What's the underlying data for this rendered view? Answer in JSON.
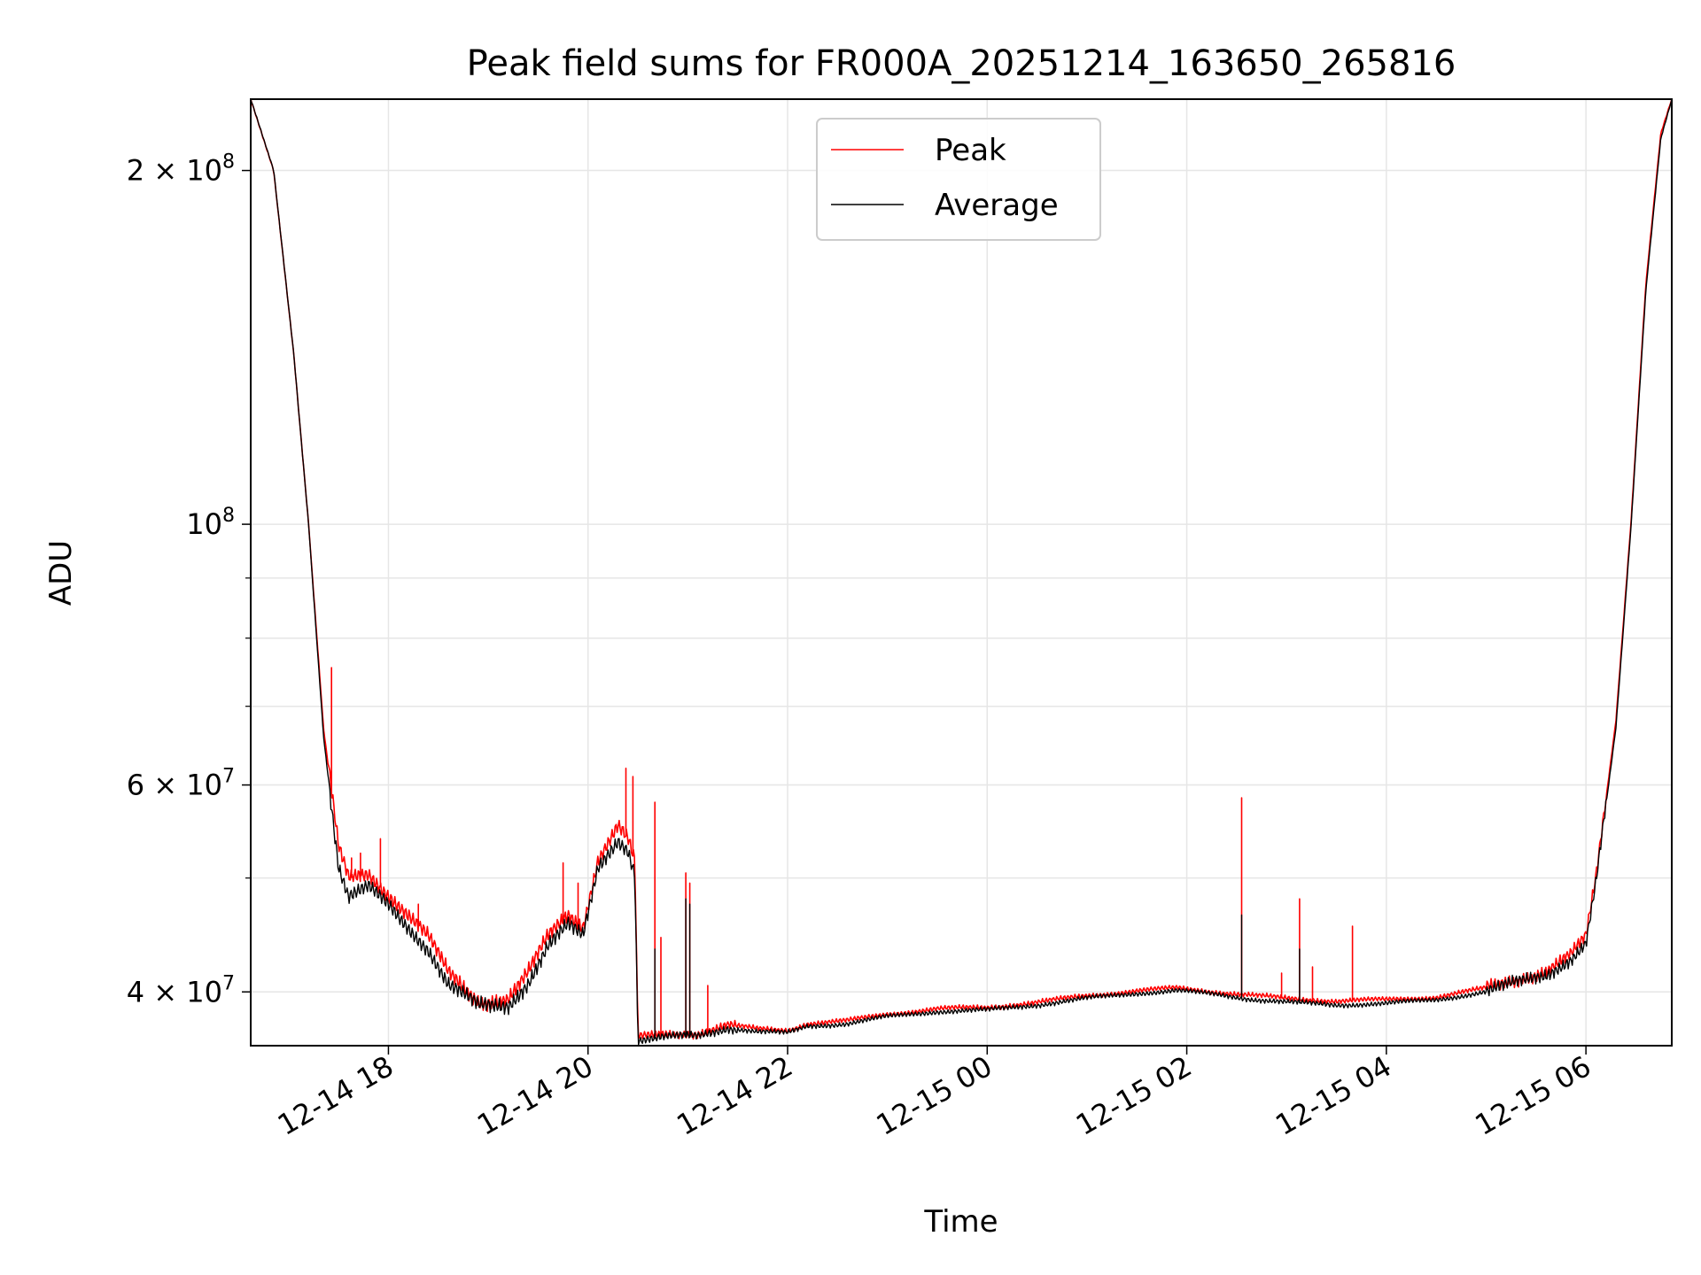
{
  "chart_data": {
    "type": "line",
    "title": "Peak field sums for FR000A_20251214_163650_265816",
    "xlabel": "Time",
    "ylabel": "ADU",
    "yscale": "log",
    "ylim": [
      36000000,
      230000000
    ],
    "xlim_hours": [
      16.62,
      30.86
    ],
    "grid": true,
    "legend_position": "upper-center",
    "x_ticks": [
      {
        "hour": 18,
        "label": "12-14 18"
      },
      {
        "hour": 20,
        "label": "12-14 20"
      },
      {
        "hour": 22,
        "label": "12-14 22"
      },
      {
        "hour": 24,
        "label": "12-15 00"
      },
      {
        "hour": 26,
        "label": "12-15 02"
      },
      {
        "hour": 28,
        "label": "12-15 04"
      },
      {
        "hour": 30,
        "label": "12-15 06"
      }
    ],
    "y_major_ticks": [
      {
        "value": 40000000,
        "mant": "4",
        "exp": "7",
        "times": true
      },
      {
        "value": 60000000,
        "mant": "6",
        "exp": "7",
        "times": true
      },
      {
        "value": 100000000,
        "mant": "10",
        "exp": "8",
        "times": false
      },
      {
        "value": 200000000,
        "mant": "2",
        "exp": "8",
        "times": true
      }
    ],
    "y_minor_ticks": [
      50000000,
      70000000,
      80000000,
      90000000
    ],
    "series": [
      {
        "name": "Peak",
        "color": "#ff0000",
        "points": [
          [
            16.62,
            230000000
          ],
          [
            16.85,
            200000000
          ],
          [
            17.05,
            140000000
          ],
          [
            17.2,
            100000000
          ],
          [
            17.35,
            67000000
          ],
          [
            17.5,
            53000000
          ],
          [
            17.6,
            50000000
          ],
          [
            17.8,
            50500000
          ],
          [
            18.0,
            48500000
          ],
          [
            18.2,
            46500000
          ],
          [
            18.4,
            44500000
          ],
          [
            18.6,
            41500000
          ],
          [
            18.9,
            39300000
          ],
          [
            19.2,
            39500000
          ],
          [
            19.4,
            41500000
          ],
          [
            19.6,
            44500000
          ],
          [
            19.8,
            46500000
          ],
          [
            19.95,
            45500000
          ],
          [
            20.1,
            52000000
          ],
          [
            20.3,
            55500000
          ],
          [
            20.4,
            54000000
          ],
          [
            20.47,
            51500000
          ],
          [
            20.5,
            36600000
          ],
          [
            20.8,
            36800000
          ],
          [
            21.1,
            36900000
          ],
          [
            21.4,
            37500000
          ],
          [
            21.7,
            37200000
          ],
          [
            22.0,
            37100000
          ],
          [
            22.2,
            37600000
          ],
          [
            22.6,
            37800000
          ],
          [
            23.0,
            38300000
          ],
          [
            23.5,
            38700000
          ],
          [
            24.0,
            38800000
          ],
          [
            24.5,
            39200000
          ],
          [
            25.0,
            39700000
          ],
          [
            25.5,
            40100000
          ],
          [
            25.9,
            40300000
          ],
          [
            26.3,
            40000000
          ],
          [
            26.7,
            39700000
          ],
          [
            27.0,
            39500000
          ],
          [
            27.5,
            39300000
          ],
          [
            28.0,
            39400000
          ],
          [
            28.5,
            39600000
          ],
          [
            29.0,
            40300000
          ],
          [
            29.3,
            41000000
          ],
          [
            29.6,
            41700000
          ],
          [
            29.85,
            43000000
          ],
          [
            30.0,
            44500000
          ],
          [
            30.1,
            50000000
          ],
          [
            30.3,
            68000000
          ],
          [
            30.45,
            100000000
          ],
          [
            30.6,
            160000000
          ],
          [
            30.75,
            215000000
          ],
          [
            30.86,
            230000000
          ]
        ],
        "spikes": [
          [
            17.43,
            75500000
          ],
          [
            17.63,
            52000000
          ],
          [
            17.72,
            52500000
          ],
          [
            17.92,
            54000000
          ],
          [
            18.3,
            47500000
          ],
          [
            18.45,
            44000000
          ],
          [
            19.75,
            51500000
          ],
          [
            19.9,
            49500000
          ],
          [
            20.38,
            62000000
          ],
          [
            20.45,
            61000000
          ],
          [
            20.67,
            58000000
          ],
          [
            20.73,
            44500000
          ],
          [
            20.98,
            50500000
          ],
          [
            21.02,
            49500000
          ],
          [
            21.2,
            40500000
          ],
          [
            26.55,
            58500000
          ],
          [
            26.95,
            41500000
          ],
          [
            27.13,
            48000000
          ],
          [
            27.26,
            42000000
          ],
          [
            27.66,
            45500000
          ]
        ]
      },
      {
        "name": "Average",
        "color": "#000000",
        "points": [
          [
            16.62,
            230000000
          ],
          [
            16.85,
            200000000
          ],
          [
            17.05,
            140000000
          ],
          [
            17.2,
            100000000
          ],
          [
            17.35,
            66000000
          ],
          [
            17.5,
            51000000
          ],
          [
            17.6,
            48000000
          ],
          [
            17.8,
            49000000
          ],
          [
            18.0,
            47500000
          ],
          [
            18.2,
            45500000
          ],
          [
            18.4,
            43500000
          ],
          [
            18.6,
            40500000
          ],
          [
            18.9,
            38900000
          ],
          [
            19.2,
            39000000
          ],
          [
            19.4,
            40800000
          ],
          [
            19.6,
            43800000
          ],
          [
            19.8,
            45500000
          ],
          [
            19.95,
            44500000
          ],
          [
            20.1,
            51000000
          ],
          [
            20.3,
            54000000
          ],
          [
            20.4,
            53000000
          ],
          [
            20.47,
            50500000
          ],
          [
            20.5,
            36400000
          ],
          [
            20.8,
            36600000
          ],
          [
            21.1,
            36700000
          ],
          [
            21.4,
            37300000
          ],
          [
            21.7,
            37000000
          ],
          [
            22.0,
            36900000
          ],
          [
            22.2,
            37400000
          ],
          [
            22.6,
            37600000
          ],
          [
            23.0,
            38100000
          ],
          [
            23.5,
            38500000
          ],
          [
            24.0,
            38600000
          ],
          [
            24.5,
            39000000
          ],
          [
            25.0,
            39500000
          ],
          [
            25.5,
            39900000
          ],
          [
            25.9,
            40100000
          ],
          [
            26.3,
            39800000
          ],
          [
            26.7,
            39400000
          ],
          [
            27.0,
            39200000
          ],
          [
            27.5,
            39000000
          ],
          [
            28.0,
            39100000
          ],
          [
            28.5,
            39400000
          ],
          [
            29.0,
            40000000
          ],
          [
            29.3,
            40700000
          ],
          [
            29.6,
            41400000
          ],
          [
            29.85,
            42700000
          ],
          [
            30.0,
            44000000
          ],
          [
            30.1,
            49500000
          ],
          [
            30.3,
            67000000
          ],
          [
            30.45,
            99000000
          ],
          [
            30.6,
            158000000
          ],
          [
            30.75,
            213000000
          ],
          [
            30.86,
            230000000
          ]
        ],
        "spikes": [
          [
            20.67,
            43500000
          ],
          [
            20.98,
            48000000
          ],
          [
            21.02,
            47500000
          ],
          [
            26.55,
            46500000
          ],
          [
            27.13,
            43500000
          ]
        ]
      }
    ]
  }
}
